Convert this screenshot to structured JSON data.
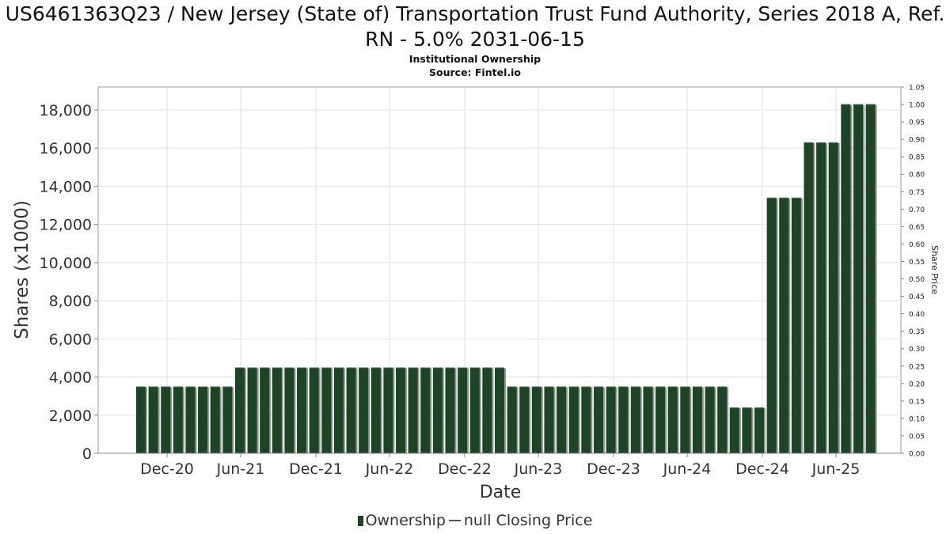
{
  "chart_data": {
    "type": "bar",
    "title": "US6461363Q23 / New Jersey (State of) Transportation Trust Fund Authority, Series 2018 A, Ref. RN - 5.0% 2031-06-15",
    "subtitle": [
      "Institutional Ownership",
      "Source: Fintel.io"
    ],
    "xlabel": "Date",
    "ylabel": "Shares (x1000)",
    "y2label": "Share Price",
    "ylim": [
      0,
      19200
    ],
    "y2lim": [
      0,
      1.05
    ],
    "yticks": [
      "0",
      "2,000",
      "4,000",
      "6,000",
      "8,000",
      "10,000",
      "12,000",
      "14,000",
      "16,000",
      "18,000"
    ],
    "y2ticks": [
      "0.00",
      "0.05",
      "0.10",
      "0.15",
      "0.20",
      "0.25",
      "0.30",
      "0.35",
      "0.40",
      "0.45",
      "0.50",
      "0.55",
      "0.60",
      "0.65",
      "0.70",
      "0.75",
      "0.80",
      "0.85",
      "0.90",
      "0.95",
      "1.00",
      "1.05"
    ],
    "xticks": [
      "Dec-20",
      "Jun-21",
      "Dec-21",
      "Jun-22",
      "Dec-22",
      "Jun-23",
      "Dec-23",
      "Jun-24",
      "Dec-24",
      "Jun-25"
    ],
    "grid": true,
    "legend_position": "bottom",
    "series": [
      {
        "name": "Ownership",
        "color": "#1e4427",
        "values": [
          3500,
          3500,
          3500,
          3500,
          3500,
          3500,
          3500,
          3500,
          4500,
          4500,
          4500,
          4500,
          4500,
          4500,
          4500,
          4500,
          4500,
          4500,
          4500,
          4500,
          4500,
          4500,
          4500,
          4500,
          4500,
          4500,
          4500,
          4500,
          4500,
          4500,
          3500,
          3500,
          3500,
          3500,
          3500,
          3500,
          3500,
          3500,
          3500,
          3500,
          3500,
          3500,
          3500,
          3500,
          3500,
          3500,
          3500,
          3500,
          2400,
          2400,
          2400,
          13400,
          13400,
          13400,
          16300,
          16300,
          16300,
          18300,
          18300,
          18300
        ]
      },
      {
        "name": "null Closing Price",
        "color": "#555555",
        "values": []
      }
    ]
  }
}
